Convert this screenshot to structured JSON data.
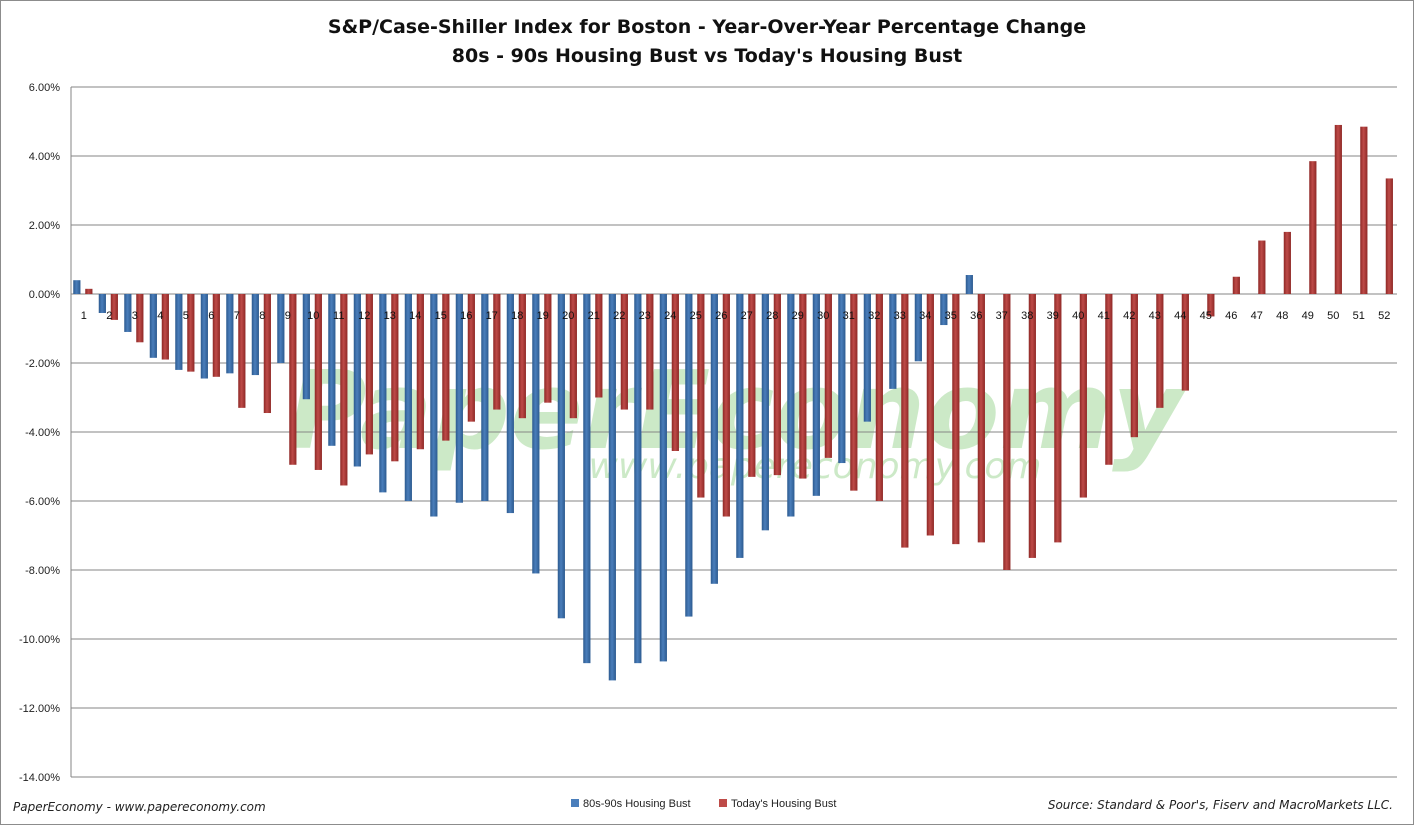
{
  "watermark": {
    "main": "PaperEconomy",
    "url": "www.papereconomy.com"
  },
  "footer": {
    "left": "PaperEconomy - www.papereconomy.com",
    "right": "Source: Standard & Poor's, Fiserv and MacroMarkets LLC."
  },
  "colors": {
    "series1": "#4a7ebb",
    "series2": "#be4b48",
    "grid": "#868686"
  },
  "chart_data": {
    "type": "bar",
    "title": "S&P/Case-Shiller Index for Boston - Year-Over-Year Percentage Change",
    "subtitle": "80s - 90s Housing Bust vs Today's Housing Bust",
    "xlabel": "",
    "ylabel": "",
    "ylim": [
      -14,
      6
    ],
    "yticks": [
      6,
      4,
      2,
      0,
      -2,
      -4,
      -6,
      -8,
      -10,
      -12,
      -14
    ],
    "ytick_labels": [
      "6.00%",
      "4.00%",
      "2.00%",
      "0.00%",
      "-2.00%",
      "-4.00%",
      "-6.00%",
      "-8.00%",
      "-10.00%",
      "-12.00%",
      "-14.00%"
    ],
    "grid": true,
    "legend_position": "bottom-center",
    "categories": [
      "1",
      "2",
      "3",
      "4",
      "5",
      "6",
      "7",
      "8",
      "9",
      "10",
      "11",
      "12",
      "13",
      "14",
      "15",
      "16",
      "17",
      "18",
      "19",
      "20",
      "21",
      "22",
      "23",
      "24",
      "25",
      "26",
      "27",
      "28",
      "29",
      "30",
      "31",
      "32",
      "33",
      "34",
      "35",
      "36",
      "37",
      "38",
      "39",
      "40",
      "41",
      "42",
      "43",
      "44",
      "45",
      "46",
      "47",
      "48",
      "49",
      "50",
      "51",
      "52"
    ],
    "series": [
      {
        "name": "80s-90s Housing Bust",
        "values": [
          0.4,
          -0.55,
          -1.1,
          -1.85,
          -2.2,
          -2.45,
          -2.3,
          -2.35,
          -2.0,
          -3.05,
          -4.4,
          -5.0,
          -5.75,
          -6.0,
          -6.45,
          -6.05,
          -6.0,
          -6.35,
          -8.1,
          -9.4,
          -10.7,
          -11.2,
          -10.7,
          -10.65,
          -9.35,
          -8.4,
          -7.65,
          -6.85,
          -6.45,
          -5.85,
          -4.9,
          -3.7,
          -2.75,
          -1.95,
          -0.9,
          0.55,
          null,
          null,
          null,
          null,
          null,
          null,
          null,
          null,
          null,
          null,
          null,
          null,
          null,
          null,
          null,
          null
        ]
      },
      {
        "name": "Today's Housing Bust",
        "values": [
          0.15,
          -0.75,
          -1.4,
          -1.9,
          -2.25,
          -2.4,
          -3.3,
          -3.45,
          -4.95,
          -5.1,
          -5.55,
          -4.65,
          -4.85,
          -4.5,
          -4.25,
          -3.7,
          -3.35,
          -3.6,
          -3.15,
          -3.6,
          -3.0,
          -3.35,
          -3.35,
          -4.55,
          -5.9,
          -6.45,
          -5.3,
          -5.25,
          -5.35,
          -4.75,
          -5.7,
          -6.0,
          -7.35,
          -7.0,
          -7.25,
          -7.2,
          -8.0,
          -7.65,
          -7.2,
          -5.9,
          -4.95,
          -4.15,
          -3.3,
          -2.8,
          -0.65,
          0.5,
          1.55,
          1.8,
          3.85,
          4.9,
          4.85,
          3.35
        ]
      }
    ]
  }
}
